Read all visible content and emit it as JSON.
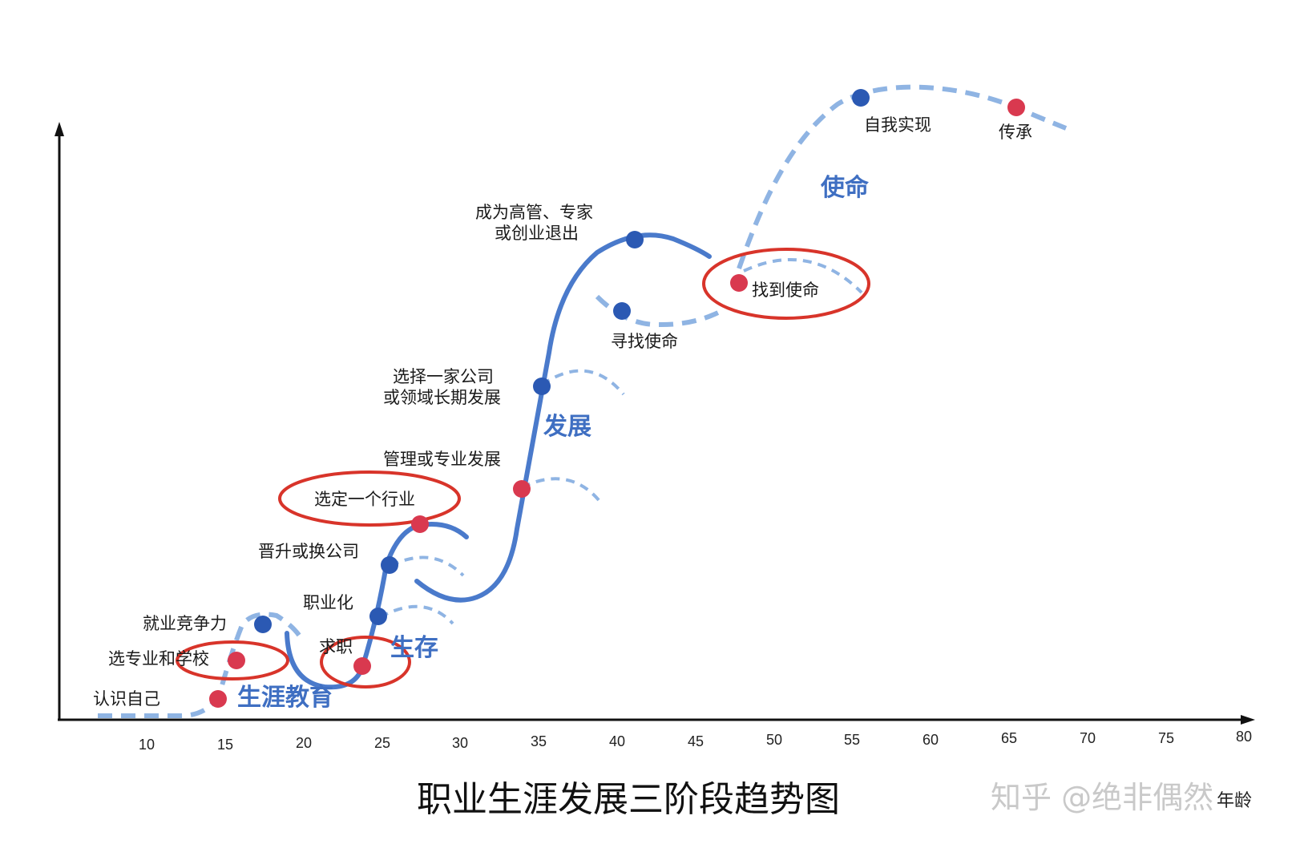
{
  "colors": {
    "curve": "#4a7acb",
    "dash": "#8fb4e3",
    "dot_blue": "#2b59b3",
    "dot_red": "#d9394f",
    "ellipse": "#d8342a"
  },
  "title": "职业生涯发展三阶段趋势图",
  "watermark": "知乎 @绝非偶然",
  "axis": {
    "x_ticks": [
      "10",
      "15",
      "20",
      "25",
      "30",
      "35",
      "40",
      "45",
      "50",
      "55",
      "60",
      "65",
      "70",
      "75",
      "80"
    ],
    "x_label": "年龄"
  },
  "stages": {
    "education": "生涯教育",
    "survival": "生存",
    "development": "发展",
    "mission": "使命"
  },
  "milestones": {
    "know_self": "认识自己",
    "choose_major": "选专业和学校",
    "employability": "就业竞争力",
    "job_seeking": "求职",
    "professionalize": "职业化",
    "promotion": "晋升或换公司",
    "choose_industry": "选定一个行业",
    "management": "管理或专业发展",
    "long_term_1": "选择一家公司",
    "long_term_2": "或领域长期发展",
    "executive_1": "成为高管、专家",
    "executive_2": "或创业退出",
    "seek_mission": "寻找使命",
    "find_mission": "找到使命",
    "self_actualization": "自我实现",
    "legacy": "传承"
  }
}
